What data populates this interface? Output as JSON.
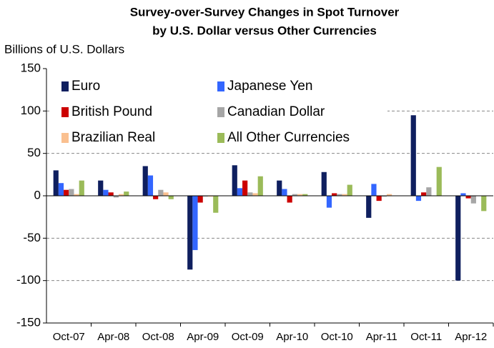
{
  "chart_data": {
    "type": "bar",
    "title": "Survey-over-Survey Changes in Spot Turnover",
    "subtitle": "by U.S. Dollar versus Other Currencies",
    "y_label": "Billions of U.S. Dollars",
    "categories": [
      "Oct-07",
      "Apr-08",
      "Oct-08",
      "Apr-09",
      "Oct-09",
      "Apr-10",
      "Oct-10",
      "Apr-11",
      "Oct-11",
      "Apr-12"
    ],
    "series": [
      {
        "name": "Euro",
        "color": "#0f1f5f",
        "values": [
          30,
          18,
          35,
          -87,
          36,
          18,
          28,
          -26,
          95,
          -100
        ]
      },
      {
        "name": "Japanese Yen",
        "color": "#3366ff",
        "values": [
          15,
          7,
          24,
          -64,
          9,
          8,
          -14,
          14,
          -6,
          3
        ]
      },
      {
        "name": "British Pound",
        "color": "#cc0000",
        "values": [
          7,
          4,
          -4,
          -8,
          18,
          -8,
          3,
          -6,
          4,
          -3
        ]
      },
      {
        "name": "Canadian Dollar",
        "color": "#a6a6a6",
        "values": [
          8,
          -2,
          7,
          -1,
          4,
          2,
          2,
          -1,
          10,
          -9
        ]
      },
      {
        "name": "Brazilian Real",
        "color": "#fac090",
        "values": [
          2,
          2,
          4,
          -1,
          3,
          2,
          2,
          2,
          0,
          0
        ]
      },
      {
        "name": "All Other Currencies",
        "color": "#9bbb59",
        "values": [
          18,
          5,
          -4,
          -20,
          23,
          2,
          13,
          0,
          34,
          -18
        ]
      }
    ],
    "ylim": [
      -150,
      150
    ],
    "yticks": [
      -150,
      -100,
      -50,
      0,
      50,
      100,
      150
    ],
    "grid": true,
    "legend": "upper left"
  }
}
